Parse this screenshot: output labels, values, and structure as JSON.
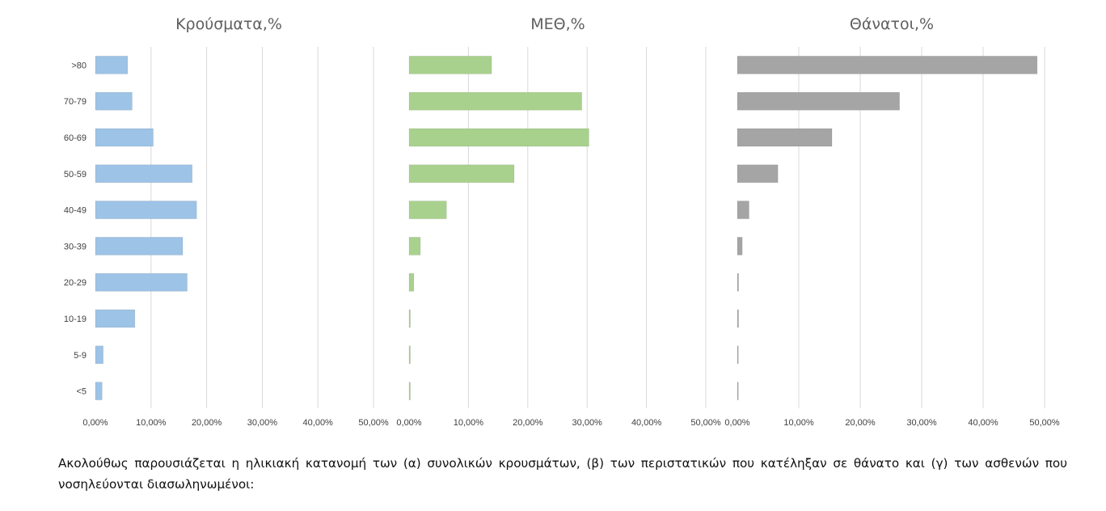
{
  "chart_data": [
    {
      "type": "bar",
      "orientation": "horizontal",
      "title": "Κρούσματα,%",
      "categories": [
        ">80",
        "70-79",
        "60-69",
        "50-59",
        "40-49",
        "30-39",
        "20-29",
        "10-19",
        "5-9",
        "<5"
      ],
      "values": [
        5.8,
        6.6,
        10.4,
        17.4,
        18.2,
        15.7,
        16.5,
        7.1,
        1.4,
        1.2
      ],
      "xlim": [
        0,
        50
      ],
      "tick_labels": [
        "0,00%",
        "10,00%",
        "20,00%",
        "30,00%",
        "40,00%",
        "50,00%"
      ],
      "grid": true,
      "color": "#9dc3e6"
    },
    {
      "type": "bar",
      "orientation": "horizontal",
      "title": "ΜΕΘ,%",
      "categories": [
        ">80",
        "70-79",
        "60-69",
        "50-59",
        "40-49",
        "30-39",
        "20-29",
        "10-19",
        "5-9",
        "<5"
      ],
      "values": [
        13.9,
        29.1,
        30.3,
        17.7,
        6.3,
        1.9,
        0.8,
        0.2,
        0.2,
        0.2
      ],
      "xlim": [
        0,
        50
      ],
      "tick_labels": [
        "0,00%",
        "10,00%",
        "20,00%",
        "30,00%",
        "40,00%",
        "50,00%"
      ],
      "grid": true,
      "color": "#a9d18e"
    },
    {
      "type": "bar",
      "orientation": "horizontal",
      "title": "Θάνατοι,%",
      "categories": [
        ">80",
        "70-79",
        "60-69",
        "50-59",
        "40-49",
        "30-39",
        "20-29",
        "10-19",
        "5-9",
        "<5"
      ],
      "values": [
        48.8,
        26.4,
        15.4,
        6.6,
        1.9,
        0.8,
        0.2,
        0.2,
        0,
        0
      ],
      "xlim": [
        0,
        50
      ],
      "tick_labels": [
        "0,00%",
        "10,00%",
        "20,00%",
        "30,00%",
        "40,00%",
        "50,00%"
      ],
      "grid": true,
      "color": "#a5a5a5"
    }
  ],
  "caption": {
    "text": "Ακολούθως παρουσιάζεται η ηλικιακή κατανομή των (α) συνολικών κρουσμάτων, (β) των περιστατικών που κατέληξαν σε θάνατο και (γ) των ασθενών που νοσηλεύονται διασωληνωμένοι:"
  }
}
